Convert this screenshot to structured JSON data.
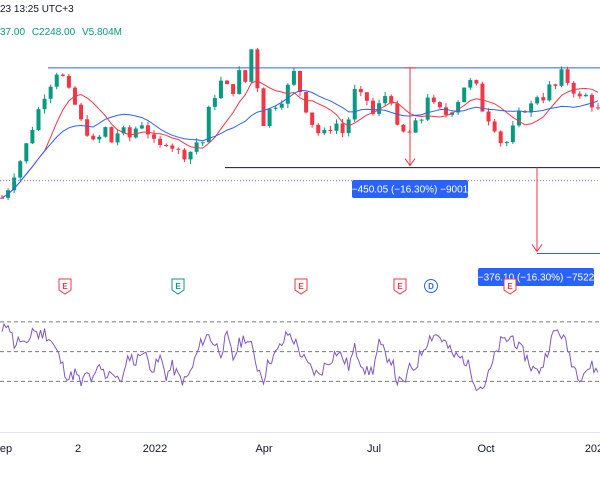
{
  "header": {
    "datetime_fragment": "23 13:25 UTC+3",
    "ohlc_open_fragment": "37.00",
    "ohlc_close_fragment": "C2248.00",
    "volume": "V5.804M"
  },
  "measure_tags": [
    {
      "text": "−450.05 (−16.30%) −9001"
    },
    {
      "text": "−376.10 (−16.30%) −7522"
    }
  ],
  "events": [
    {
      "letter": "E",
      "kind": "earnings",
      "color": "#f23645"
    },
    {
      "letter": "E",
      "kind": "earnings",
      "color": "#089981"
    },
    {
      "letter": "E",
      "kind": "earnings",
      "color": "#f23645"
    },
    {
      "letter": "E",
      "kind": "earnings",
      "color": "#f23645"
    },
    {
      "letter": "D",
      "kind": "dividend",
      "color": "#2962ff"
    },
    {
      "letter": "E",
      "kind": "earnings",
      "color": "#f23645"
    }
  ],
  "colors": {
    "up": "#089981",
    "down": "#f23645",
    "ma_fast": "#f23645",
    "ma_slow": "#2962ff",
    "oscillator": "#7e57c2",
    "level": "#2962ff",
    "support": "#131722",
    "measure": "#f23645",
    "tag_bg": "#2962ff"
  },
  "chart_data": {
    "type": "candlestick",
    "x_tick_labels": [
      "ep",
      "2",
      "2022",
      "Apr",
      "Jul",
      "Oct",
      "202"
    ],
    "price_path": [
      2320,
      2360,
      2420,
      2480,
      2550,
      2620,
      2700,
      2760,
      2810,
      2860,
      2840,
      2780,
      2720,
      2650,
      2600,
      2560,
      2580,
      2620,
      2560,
      2600,
      2610,
      2580,
      2620,
      2640,
      2600,
      2560,
      2540,
      2560,
      2540,
      2520,
      2500,
      2520,
      2560,
      2560,
      2700,
      2760,
      2820,
      2800,
      2780,
      2860,
      2820,
      2960,
      2800,
      2640,
      2700,
      2720,
      2740,
      2800,
      2860,
      2780,
      2700,
      2640,
      2600,
      2600,
      2620,
      2640,
      2600,
      2660,
      2780,
      2760,
      2740,
      2680,
      2720,
      2760,
      2740,
      2620,
      2600,
      2600,
      2640,
      2660,
      2760,
      2720,
      2700,
      2680,
      2700,
      2740,
      2800,
      2820,
      2800,
      2700,
      2660,
      2620,
      2560,
      2560,
      2620,
      2680,
      2700,
      2720,
      2760,
      2750,
      2800,
      2800,
      2860,
      2820,
      2780,
      2750,
      2760,
      2720,
      2700
    ],
    "oscillator_path": [
      62,
      71,
      55,
      58,
      52,
      66,
      61,
      63,
      58,
      50,
      40,
      32,
      36,
      28,
      35,
      30,
      40,
      34,
      38,
      30,
      34,
      48,
      42,
      52,
      44,
      38,
      46,
      34,
      40,
      33,
      30,
      36,
      48,
      58,
      61,
      55,
      50,
      60,
      45,
      55,
      60,
      53,
      40,
      32,
      45,
      48,
      55,
      62,
      58,
      50,
      42,
      38,
      34,
      40,
      45,
      50,
      46,
      40,
      52,
      44,
      36,
      38,
      55,
      48,
      45,
      30,
      28,
      38,
      40,
      50,
      58,
      62,
      60,
      55,
      48,
      46,
      45,
      38,
      28,
      26,
      34,
      46,
      56,
      58,
      60,
      52,
      48,
      40,
      36,
      42,
      55,
      64,
      62,
      52,
      40,
      34,
      38,
      40,
      36
    ],
    "oscillator_levels": [
      70,
      50,
      30
    ],
    "resistance_level": 2880,
    "support_level": 2450,
    "target_level": 2080,
    "measure_1": {
      "change": -450.05,
      "percent": -16.3,
      "ticks": -9001
    },
    "measure_2": {
      "change": -376.1,
      "percent": -16.3,
      "ticks": -7522
    },
    "grid": false
  }
}
